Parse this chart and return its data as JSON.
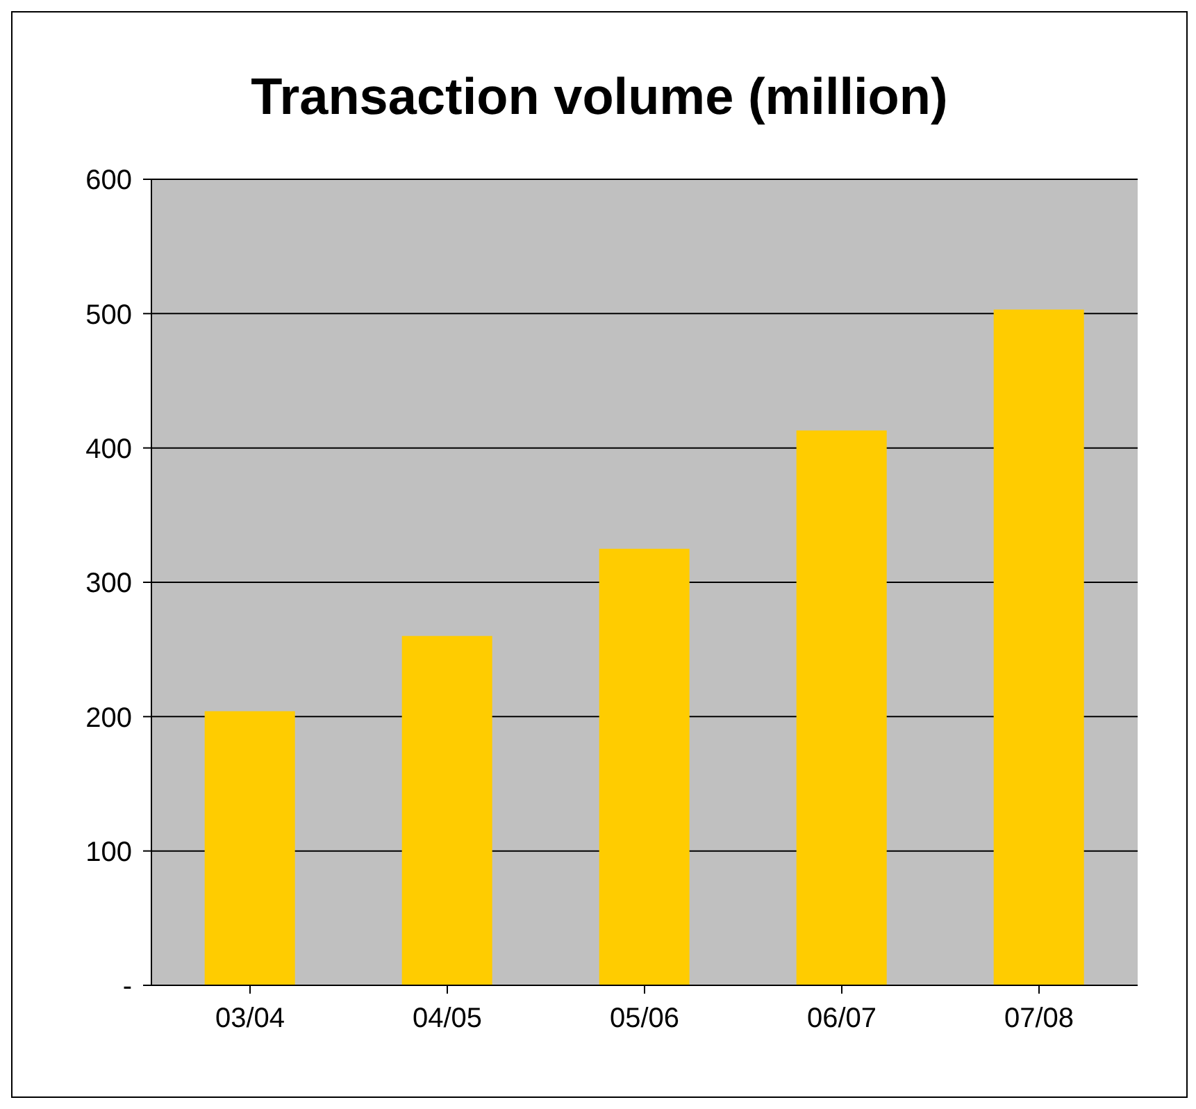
{
  "chart_data": {
    "type": "bar",
    "title": "Transaction volume (million)",
    "categories": [
      "03/04",
      "04/05",
      "05/06",
      "06/07",
      "07/08"
    ],
    "values": [
      204,
      260,
      325,
      413,
      503
    ],
    "color": "#ffcc00",
    "ylim": [
      0,
      600
    ],
    "yticks": [
      {
        "value": 0,
        "label": "-"
      },
      100,
      200,
      300,
      400,
      500,
      600
    ],
    "grid": "y",
    "legend": false
  }
}
